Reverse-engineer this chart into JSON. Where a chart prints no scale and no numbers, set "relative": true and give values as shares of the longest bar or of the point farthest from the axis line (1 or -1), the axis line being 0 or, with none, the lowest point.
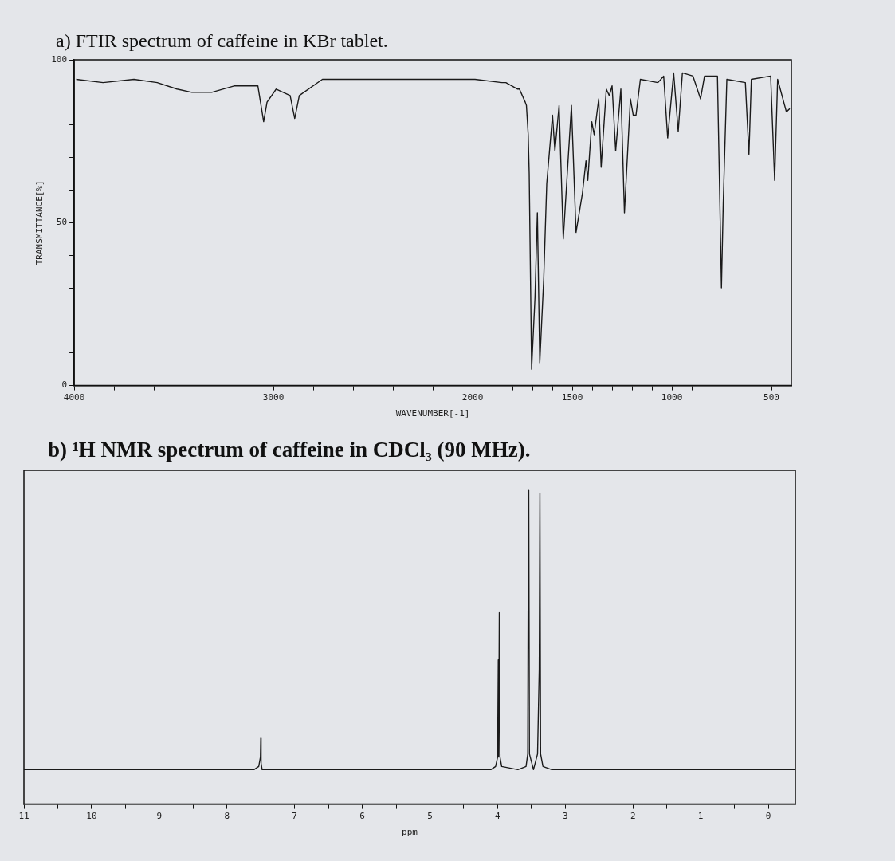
{
  "chart_data": [
    {
      "type": "line",
      "title": "a) FTIR spectrum of caffeine in KBr tablet.",
      "xlabel": "WAVENUMBER[-1]",
      "ylabel": "TRANSMITTANCE[%]",
      "marker": "none",
      "line_style": "solid",
      "xlim": [
        4000,
        400
      ],
      "xticks": [
        4000,
        {
          "value": 3800,
          "label": null
        },
        {
          "value": 3600,
          "label": null
        },
        {
          "value": 3400,
          "label": null
        },
        {
          "value": 3200,
          "label": null
        },
        3000,
        {
          "value": 2800,
          "label": null
        },
        {
          "value": 2600,
          "label": null
        },
        {
          "value": 2400,
          "label": null
        },
        {
          "value": 2200,
          "label": null
        },
        2000,
        {
          "value": 1900,
          "label": null
        },
        {
          "value": 1800,
          "label": null
        },
        {
          "value": 1700,
          "label": null
        },
        {
          "value": 1600,
          "label": null
        },
        1500,
        {
          "value": 1400,
          "label": null
        },
        {
          "value": 1300,
          "label": null
        },
        {
          "value": 1200,
          "label": null
        },
        {
          "value": 1100,
          "label": null
        },
        1000,
        {
          "value": 900,
          "label": null
        },
        {
          "value": 800,
          "label": null
        },
        {
          "value": 700,
          "label": null
        },
        {
          "value": 600,
          "label": null
        },
        500
      ],
      "ylim": [
        0,
        100
      ],
      "yticks": [
        0,
        {
          "value": 10,
          "label": null
        },
        {
          "value": 20,
          "label": null
        },
        {
          "value": 30,
          "label": null
        },
        {
          "value": 40,
          "label": null
        },
        50,
        {
          "value": 60,
          "label": null
        },
        {
          "value": 70,
          "label": null
        },
        {
          "value": 80,
          "label": null
        },
        {
          "value": 90,
          "label": null
        },
        100
      ],
      "series": [
        {
          "color": "#1a1a1a",
          "x": [
            3990,
            3855,
            3700,
            3583,
            3484,
            3409,
            3310,
            3194,
            3078,
            3049,
            3032,
            2986,
            2916,
            2893,
            2870,
            2754,
            2481,
            1988,
            1853,
            1833,
            1774,
            1765,
            1736,
            1730,
            1721,
            1716,
            1707,
            1704,
            1687,
            1675,
            1663,
            1643,
            1628,
            1599,
            1587,
            1566,
            1545,
            1504,
            1481,
            1449,
            1431,
            1422,
            1402,
            1390,
            1367,
            1355,
            1329,
            1314,
            1300,
            1282,
            1256,
            1238,
            1208,
            1194,
            1180,
            1158,
            1070,
            1041,
            1021,
            991,
            968,
            947,
            894,
            856,
            836,
            771,
            751,
            742,
            724,
            631,
            613,
            601,
            504,
            484,
            469,
            425,
            408
          ],
          "values": [
            94,
            93,
            94,
            93,
            91,
            90,
            90,
            92,
            92,
            81,
            87,
            91,
            89,
            82,
            89,
            94,
            94,
            94,
            93,
            93,
            91,
            91,
            87,
            86,
            77,
            65,
            20,
            5,
            27,
            53,
            7,
            33,
            62,
            83,
            72,
            86,
            45,
            86,
            47,
            59,
            69,
            63,
            81,
            77,
            88,
            67,
            91,
            89,
            92,
            72,
            91,
            53,
            88,
            83,
            83,
            94,
            93,
            95,
            76,
            96,
            78,
            96,
            95,
            88,
            95,
            95,
            30,
            56,
            94,
            93,
            71,
            94,
            95,
            63,
            94,
            84,
            85
          ]
        }
      ]
    },
    {
      "type": "line",
      "title": "b) ¹H NMR spectrum of caffeine in CDCl₃ (90 MHz).",
      "xlabel": "ppm",
      "marker": "none",
      "line_style": "solid",
      "relative": true,
      "xlim": [
        11,
        -0.4
      ],
      "xticks": [
        11,
        {
          "value": 10.5,
          "label": null
        },
        10,
        {
          "value": 9.5,
          "label": null
        },
        9,
        {
          "value": 8.5,
          "label": null
        },
        8,
        {
          "value": 7.5,
          "label": null
        },
        7,
        {
          "value": 6.5,
          "label": null
        },
        6,
        {
          "value": 5.5,
          "label": null
        },
        5,
        {
          "value": 4.5,
          "label": null
        },
        4,
        {
          "value": 3.5,
          "label": null
        },
        3,
        {
          "value": 2.5,
          "label": null
        },
        2,
        {
          "value": 1.5,
          "label": null
        },
        1,
        {
          "value": 0.5,
          "label": null
        },
        0
      ],
      "series": [
        {
          "color": "#1a1a1a",
          "x": [
            11,
            7.6,
            7.53,
            7.505,
            7.5,
            7.495,
            7.48,
            7.4,
            4.1,
            4.03,
            4,
            3.99,
            3.985,
            3.975,
            3.965,
            3.94,
            3.7,
            3.58,
            3.555,
            3.545,
            3.54,
            3.53,
            3.47,
            3.41,
            3.385,
            3.375,
            3.365,
            3.33,
            3.2,
            -0.4
          ],
          "values": [
            0.11,
            0.11,
            0.12,
            0.15,
            0.21,
            0.13,
            0.11,
            0.11,
            0.11,
            0.12,
            0.15,
            0.46,
            0.15,
            0.61,
            0.15,
            0.12,
            0.11,
            0.12,
            0.16,
            0.94,
            1,
            0.16,
            0.11,
            0.16,
            0.43,
            0.99,
            0.16,
            0.12,
            0.11,
            0.11
          ]
        }
      ]
    }
  ]
}
